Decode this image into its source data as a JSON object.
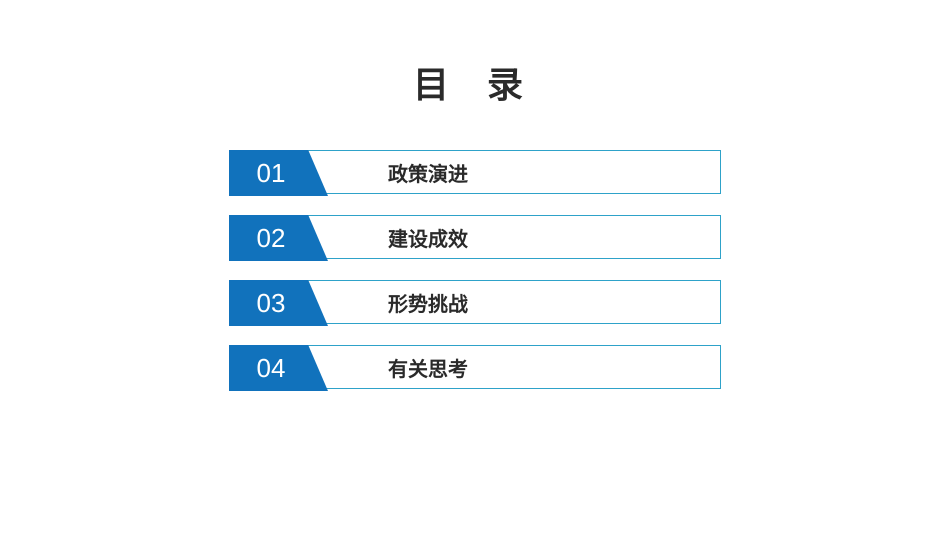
{
  "title": "目 录",
  "toc": {
    "items": [
      {
        "number": "01",
        "label": "政策演进"
      },
      {
        "number": "02",
        "label": "建设成效"
      },
      {
        "number": "03",
        "label": "形势挑战"
      },
      {
        "number": "04",
        "label": "有关思考"
      }
    ],
    "accent_color": "#1172bc",
    "border_color": "#2ea2c9",
    "text_color": "#2a2a2a",
    "number_color": "#ffffff",
    "title_fontsize": 36,
    "number_fontsize": 26,
    "label_fontsize": 20,
    "item_width": 492,
    "item_height": 44,
    "item_gap": 21
  },
  "background_color": "#ffffff"
}
